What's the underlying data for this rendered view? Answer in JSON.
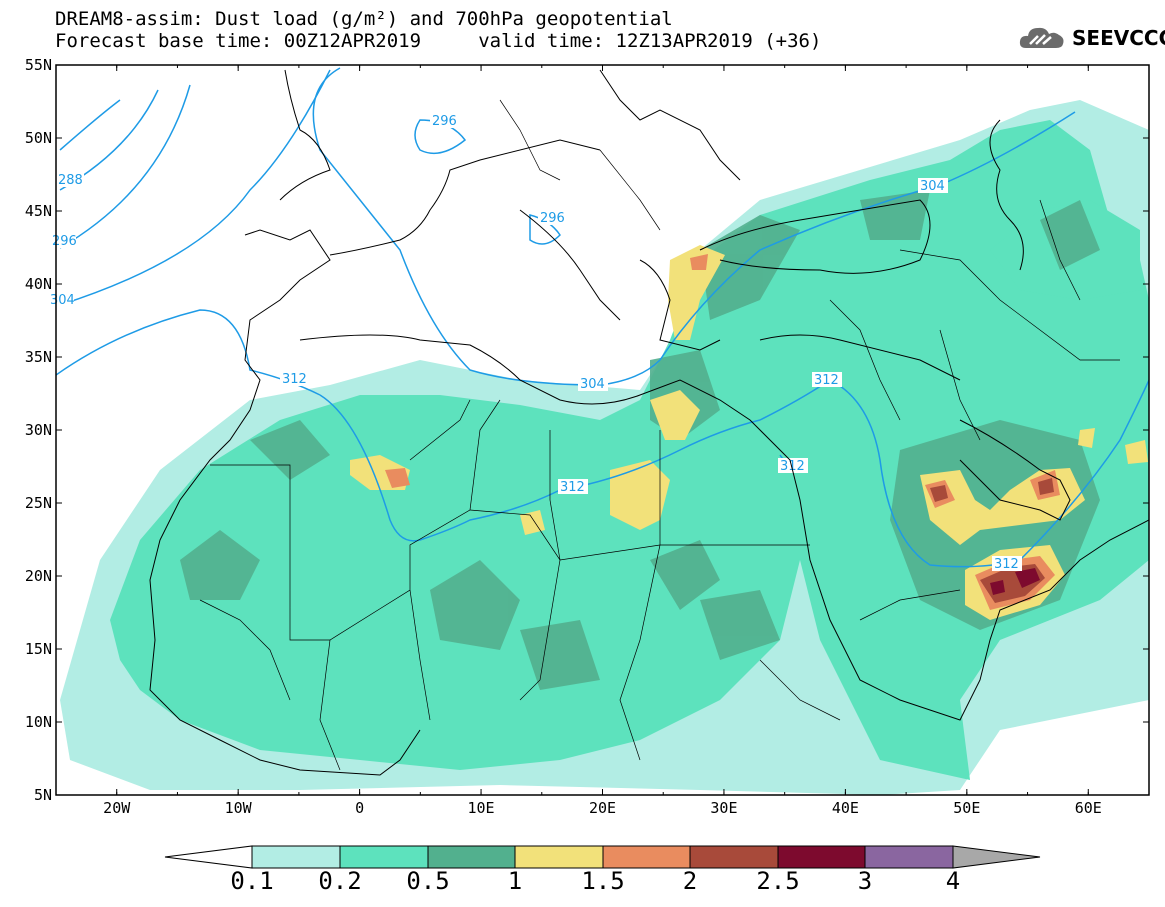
{
  "header": {
    "line1": "DREAM8-assim: Dust load (g/m²) and 700hPa geopotential",
    "line2": "Forecast base time: 00Z12APR2019     valid time: 12Z13APR2019 (+36)"
  },
  "logo": {
    "text": "SEEVCCC",
    "icon": "cloud-icon"
  },
  "map": {
    "lon_range": [
      -25,
      65
    ],
    "lat_range": [
      5,
      55
    ],
    "lat_ticks": [
      "55N",
      "50N",
      "45N",
      "40N",
      "35N",
      "30N",
      "25N",
      "20N",
      "15N",
      "10N",
      "5N"
    ],
    "lon_ticks": [
      "20W",
      "10W",
      "0",
      "10E",
      "20E",
      "30E",
      "40E",
      "50E",
      "60E"
    ],
    "contour_labels": [
      "296",
      "288",
      "296",
      "304",
      "296",
      "304",
      "312",
      "304",
      "312",
      "312",
      "312",
      "312"
    ]
  },
  "colorbar": {
    "labels": [
      "0.1",
      "0.2",
      "0.5",
      "1",
      "1.5",
      "2",
      "2.5",
      "3",
      "4"
    ],
    "colors": [
      "#ffffff",
      "#b2ede4",
      "#5de2bd",
      "#52b08e",
      "#f2e17a",
      "#e98c5f",
      "#a84a3a",
      "#7d0a2e",
      "#8a66a0",
      "#a8a8a8"
    ]
  }
}
